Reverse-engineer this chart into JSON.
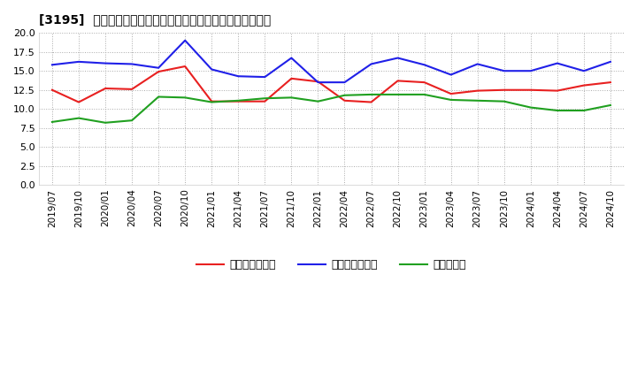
{
  "title": "[3195]  売上債権回転率、買入債務回転率、在庫回転率の推移",
  "x_labels": [
    "2019/07",
    "2019/10",
    "2020/01",
    "2020/04",
    "2020/07",
    "2020/10",
    "2021/01",
    "2021/04",
    "2021/07",
    "2021/10",
    "2022/01",
    "2022/04",
    "2022/07",
    "2022/10",
    "2023/01",
    "2023/04",
    "2023/07",
    "2023/10",
    "2024/01",
    "2024/04",
    "2024/07",
    "2024/10"
  ],
  "receivables_turnover": [
    12.5,
    10.9,
    12.7,
    12.6,
    14.9,
    15.6,
    11.0,
    11.0,
    11.0,
    14.0,
    13.6,
    11.1,
    10.9,
    13.7,
    13.5,
    12.0,
    12.4,
    12.5,
    12.5,
    12.4,
    13.1,
    13.5
  ],
  "payables_turnover": [
    15.8,
    16.2,
    16.0,
    15.9,
    15.4,
    19.0,
    15.2,
    14.3,
    14.2,
    16.7,
    13.5,
    13.5,
    15.9,
    16.7,
    15.8,
    14.5,
    15.9,
    15.0,
    15.0,
    16.0,
    15.0,
    16.2
  ],
  "inventory_turnover": [
    8.3,
    8.8,
    8.2,
    8.5,
    11.6,
    11.5,
    10.9,
    11.1,
    11.4,
    11.5,
    11.0,
    11.8,
    11.9,
    11.9,
    11.9,
    11.2,
    11.1,
    11.0,
    10.2,
    9.8,
    9.8,
    10.5
  ],
  "line_color_receivables": "#e82020",
  "line_color_payables": "#2020e8",
  "line_color_inventory": "#20a020",
  "background_color": "#ffffff",
  "grid_color": "#aaaaaa",
  "ylim": [
    0.0,
    20.0
  ],
  "yticks": [
    0.0,
    2.5,
    5.0,
    7.5,
    10.0,
    12.5,
    15.0,
    17.5,
    20.0
  ],
  "legend_labels": [
    "売上債権回転率",
    "買入債務回転率",
    "在庫回転率"
  ]
}
